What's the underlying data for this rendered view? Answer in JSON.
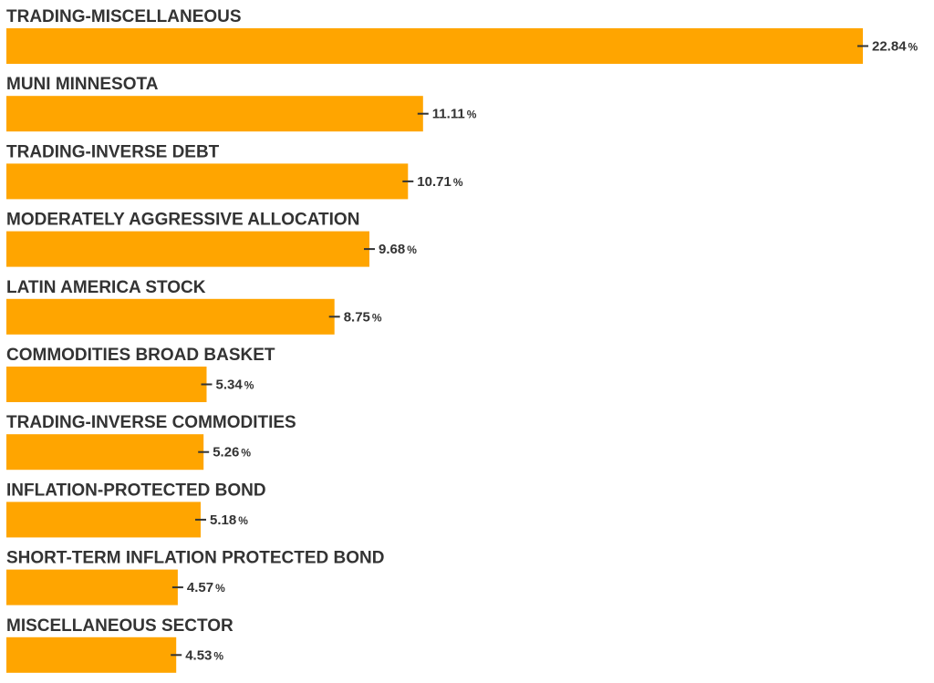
{
  "chart_data": {
    "type": "bar",
    "orientation": "horizontal",
    "categories": [
      "TRADING-MISCELLANEOUS",
      "MUNI MINNESOTA",
      "TRADING-INVERSE DEBT",
      "MODERATELY AGGRESSIVE ALLOCATION",
      "LATIN AMERICA STOCK",
      "COMMODITIES BROAD BASKET",
      "TRADING-INVERSE COMMODITIES",
      "INFLATION-PROTECTED BOND",
      "SHORT-TERM INFLATION PROTECTED BOND",
      "MISCELLANEOUS SECTOR"
    ],
    "values": [
      22.84,
      11.11,
      10.71,
      9.68,
      8.75,
      5.34,
      5.26,
      5.18,
      4.57,
      4.53
    ],
    "value_labels": [
      "22.84",
      "11.11",
      "10.71",
      "9.68",
      "8.75",
      "5.34",
      "5.26",
      "5.18",
      "4.57",
      "4.53"
    ],
    "unit": "%",
    "title": "",
    "xlabel": "",
    "ylabel": "",
    "xlim": [
      0,
      22.84
    ],
    "grid": false,
    "legend": "none",
    "colors": {
      "bar": "#FFA500",
      "text": "#333333",
      "tick": "#333333"
    }
  }
}
